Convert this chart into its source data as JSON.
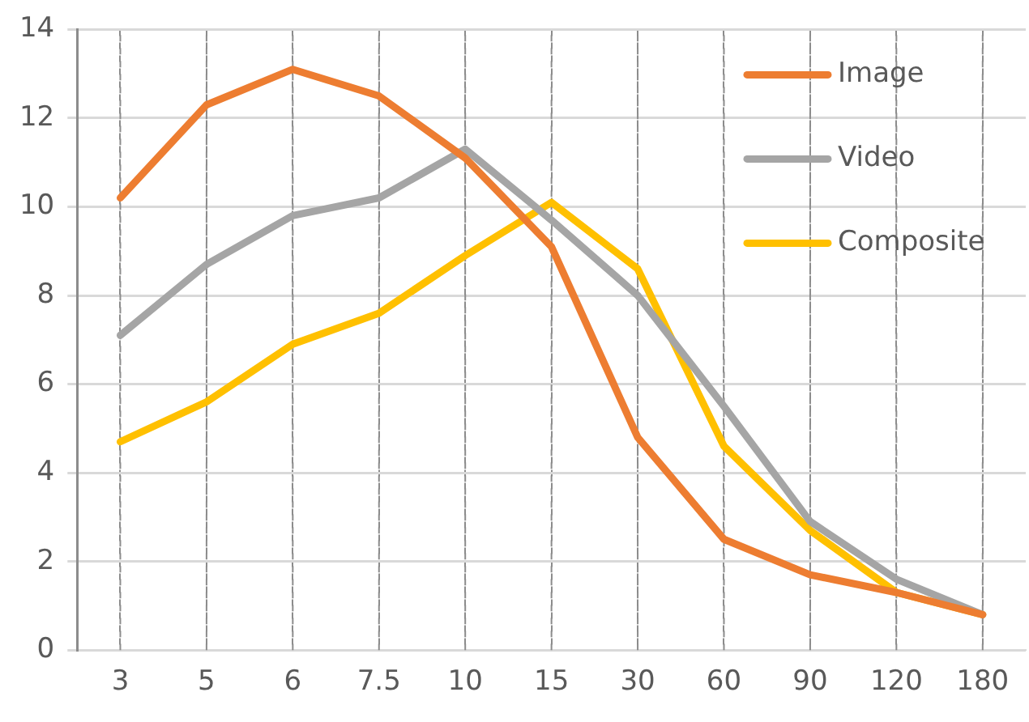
{
  "chart_data": {
    "type": "line",
    "categories": [
      "3",
      "5",
      "6",
      "7.5",
      "10",
      "15",
      "30",
      "60",
      "90",
      "120",
      "180"
    ],
    "series": [
      {
        "name": "Image",
        "color": "#ed7d31",
        "values": [
          10.2,
          12.3,
          13.1,
          12.5,
          11.1,
          9.1,
          4.8,
          2.5,
          1.7,
          1.3,
          0.8
        ]
      },
      {
        "name": "Video",
        "color": "#a5a5a5",
        "values": [
          7.1,
          8.7,
          9.8,
          10.2,
          11.3,
          9.7,
          8.0,
          5.5,
          2.9,
          1.6,
          0.8
        ]
      },
      {
        "name": "Composite",
        "color": "#ffc000",
        "values": [
          4.7,
          5.6,
          6.9,
          7.6,
          8.9,
          10.1,
          8.6,
          4.6,
          2.7,
          1.3,
          0.8
        ]
      }
    ],
    "ylim": [
      0,
      14
    ],
    "yticks": [
      0,
      2,
      4,
      6,
      8,
      10,
      12,
      14
    ],
    "grid": true,
    "legend": "top right",
    "marker": "none",
    "line_style": "solid"
  }
}
